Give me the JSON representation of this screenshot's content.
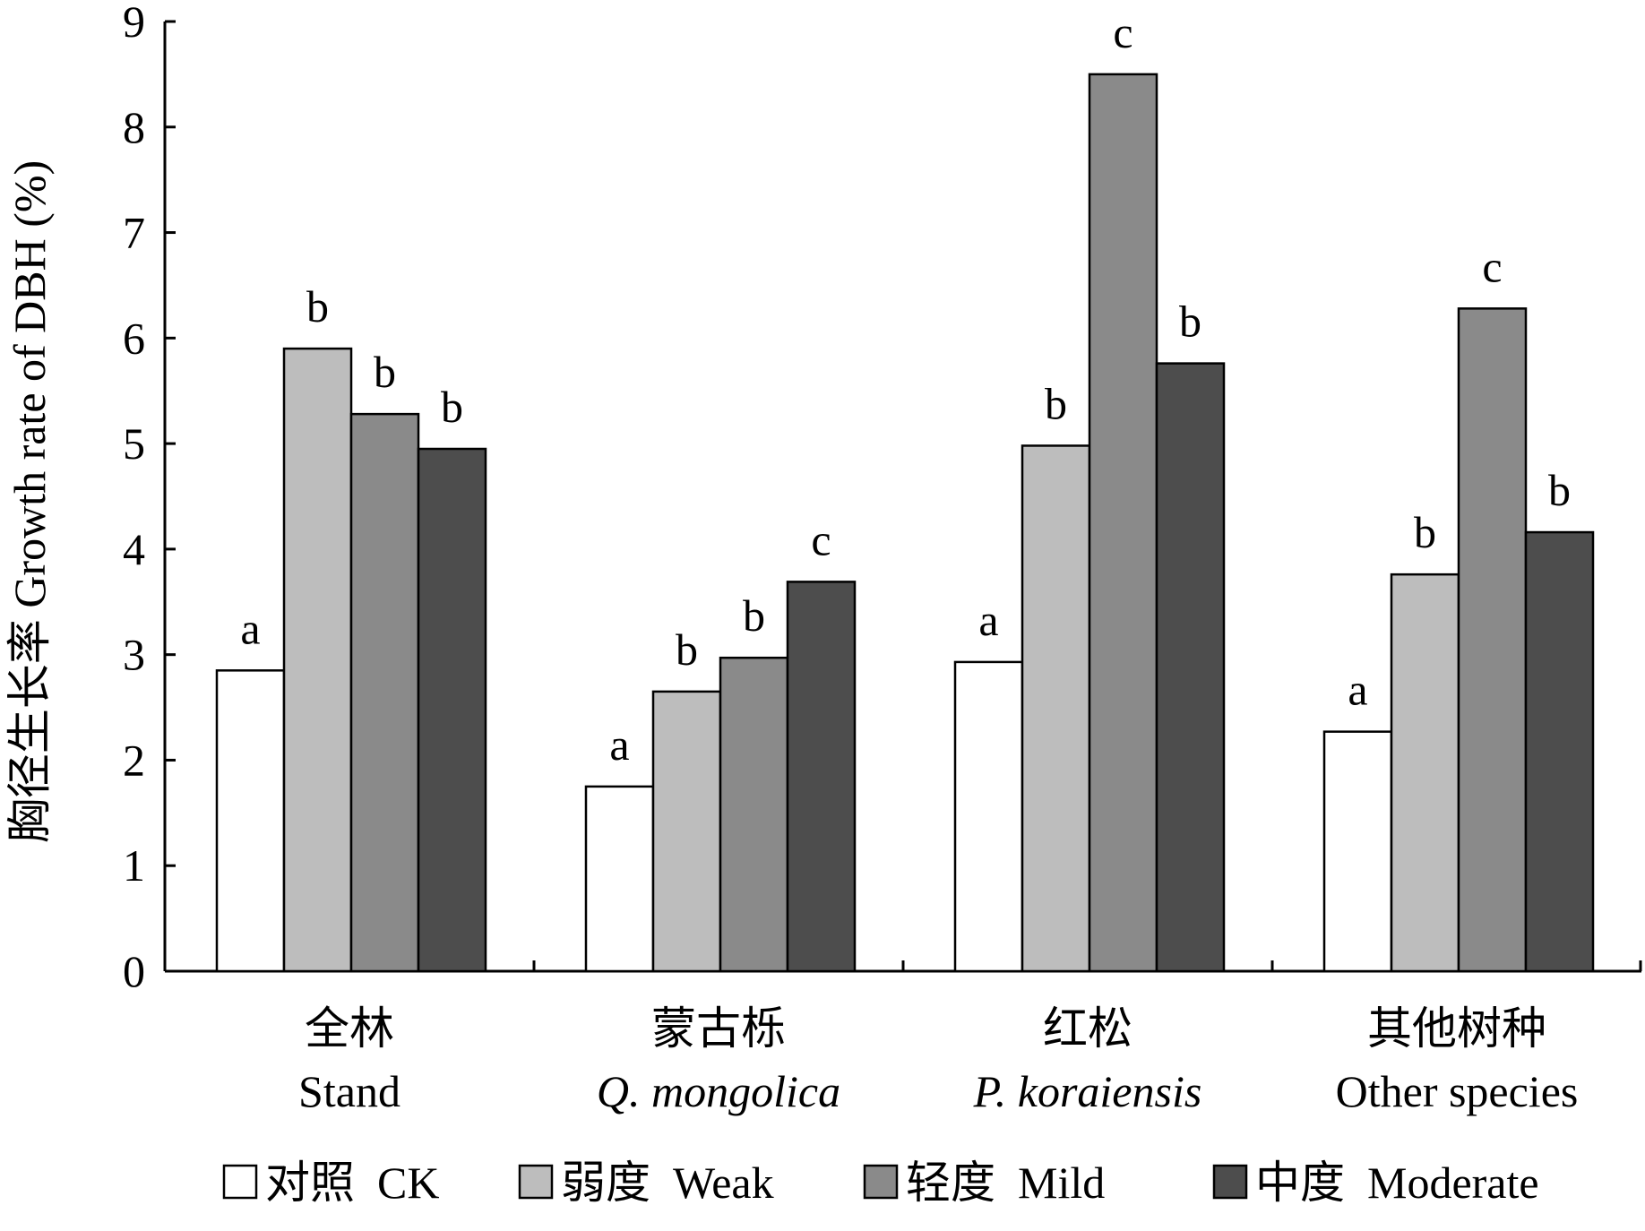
{
  "chart_data": {
    "type": "bar",
    "ylabel": "胸径生长率 Growth rate of DBH (%)",
    "xlabel": "",
    "ylim": [
      0,
      9
    ],
    "yticks": [
      0,
      1,
      2,
      3,
      4,
      5,
      6,
      7,
      8,
      9
    ],
    "grid": false,
    "legend_position": "bottom",
    "categories": [
      {
        "zh": "全林",
        "en": "Stand",
        "en_italic": false
      },
      {
        "zh": "蒙古栎",
        "en": "Q. mongolica",
        "en_italic": true
      },
      {
        "zh": "红松",
        "en": "P. koraiensis",
        "en_italic": true
      },
      {
        "zh": "其他树种",
        "en": "Other species",
        "en_italic": false
      }
    ],
    "series": [
      {
        "name": "对照  CK",
        "color": "#ffffff",
        "values": [
          2.85,
          1.75,
          2.93,
          2.27
        ],
        "letters": [
          "a",
          "a",
          "a",
          "a"
        ]
      },
      {
        "name": "弱度  Weak",
        "color": "#bdbdbd",
        "values": [
          5.9,
          2.65,
          4.98,
          3.76
        ],
        "letters": [
          "b",
          "b",
          "b",
          "b"
        ]
      },
      {
        "name": "轻度  Mild",
        "color": "#8a8a8a",
        "values": [
          5.28,
          2.97,
          8.5,
          6.28
        ],
        "letters": [
          "b",
          "b",
          "c",
          "c"
        ]
      },
      {
        "name": "中度  Moderate",
        "color": "#4d4d4d",
        "values": [
          4.95,
          3.69,
          5.76,
          4.16
        ],
        "letters": [
          "b",
          "c",
          "b",
          "b"
        ]
      }
    ]
  }
}
